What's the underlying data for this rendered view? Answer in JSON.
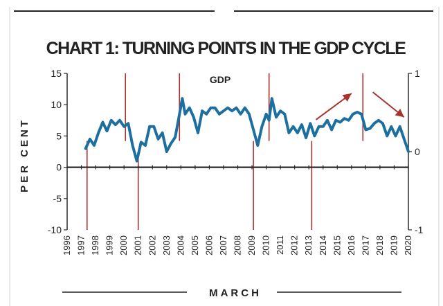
{
  "chart_data": {
    "type": "line",
    "title": "CHART 1: TURNING POINTS IN THE GDP CYCLE",
    "ylabel": "PER CENT",
    "xlabel": "MARCH",
    "series_label": "GDP",
    "ylim": [
      -10,
      15
    ],
    "y_ticks": [
      "15",
      "10",
      "5",
      "0",
      "-5",
      "-10"
    ],
    "y2lim": [
      -1,
      1
    ],
    "y2_ticks": [
      "1",
      "0",
      "-1"
    ],
    "xlim": [
      1996,
      2020
    ],
    "x_ticks": [
      "1996",
      "1997",
      "1998",
      "1999",
      "2000",
      "2001",
      "2002",
      "2003",
      "2004",
      "2005",
      "2006",
      "2007",
      "2008",
      "2009",
      "2010",
      "2011",
      "2012",
      "2013",
      "2014",
      "2015",
      "2016",
      "2017",
      "2018",
      "2019",
      "2020"
    ],
    "series": [
      {
        "color": "#1d6fa0",
        "x": [
          1997.3,
          1997.6,
          1997.9,
          1998.2,
          1998.5,
          1998.8,
          1999.1,
          1999.4,
          1999.7,
          2000.0,
          2000.3,
          2000.6,
          2000.9,
          2001.2,
          2001.5,
          2001.8,
          2002.1,
          2002.4,
          2002.7,
          2003.0,
          2003.3,
          2003.6,
          2003.9,
          2004.1,
          2004.3,
          2004.6,
          2004.9,
          2005.2,
          2005.5,
          2005.8,
          2006.1,
          2006.4,
          2006.7,
          2007.0,
          2007.3,
          2007.6,
          2007.9,
          2008.2,
          2008.5,
          2008.8,
          2009.1,
          2009.4,
          2009.7,
          2010.0,
          2010.2,
          2010.4,
          2010.7,
          2011.0,
          2011.3,
          2011.6,
          2011.9,
          2012.2,
          2012.5,
          2012.8,
          2013.1,
          2013.4,
          2013.7,
          2014.0,
          2014.3,
          2014.6,
          2014.9,
          2015.2,
          2015.5,
          2015.8,
          2016.1,
          2016.4,
          2016.7,
          2017.0,
          2017.3,
          2017.6,
          2017.9,
          2018.2,
          2018.5,
          2018.8,
          2019.1,
          2019.4,
          2019.7,
          2020.0
        ],
        "values": [
          3.0,
          4.5,
          3.5,
          5.5,
          7.2,
          5.8,
          7.5,
          6.8,
          7.5,
          6.5,
          7.0,
          3.5,
          1.0,
          4.0,
          3.5,
          6.5,
          6.5,
          4.5,
          5.5,
          2.5,
          3.8,
          4.8,
          8.5,
          11.0,
          8.5,
          9.5,
          8.0,
          5.5,
          9.0,
          8.5,
          9.5,
          9.5,
          8.5,
          9.0,
          9.5,
          9.0,
          9.5,
          8.5,
          9.5,
          8.5,
          6.0,
          3.5,
          6.5,
          8.5,
          7.5,
          11.0,
          8.0,
          9.0,
          8.5,
          5.5,
          6.5,
          5.5,
          6.8,
          4.7,
          7.0,
          5.0,
          6.5,
          6.5,
          7.5,
          6.0,
          7.5,
          7.2,
          7.8,
          7.5,
          8.5,
          8.8,
          8.5,
          6.0,
          6.2,
          7.0,
          7.5,
          7.0,
          5.0,
          6.5,
          5.0,
          6.5,
          4.5,
          2.5
        ]
      }
    ],
    "vlines": [
      {
        "x": 1997.4,
        "from": -10,
        "to": 4.2
      },
      {
        "x": 2000.1,
        "from": 4.2,
        "to": 15
      },
      {
        "x": 2001.0,
        "from": -10,
        "to": 2.0
      },
      {
        "x": 2003.9,
        "from": 4.2,
        "to": 15
      },
      {
        "x": 2009.1,
        "from": -10,
        "to": 4.2
      },
      {
        "x": 2010.2,
        "from": 4.2,
        "to": 15
      },
      {
        "x": 2013.2,
        "from": -10,
        "to": 4.2
      },
      {
        "x": 2016.8,
        "from": 4.2,
        "to": 15
      }
    ],
    "trend_arrows": [
      {
        "from": [
          2013.5,
          7.6
        ],
        "to": [
          2016.0,
          11.8
        ]
      },
      {
        "from": [
          2017.5,
          12.0
        ],
        "to": [
          2019.7,
          8.0
        ]
      }
    ],
    "line_color": "#1d6fa0",
    "accent_color": "#a8322d",
    "axis_color": "#2a2a2a"
  }
}
